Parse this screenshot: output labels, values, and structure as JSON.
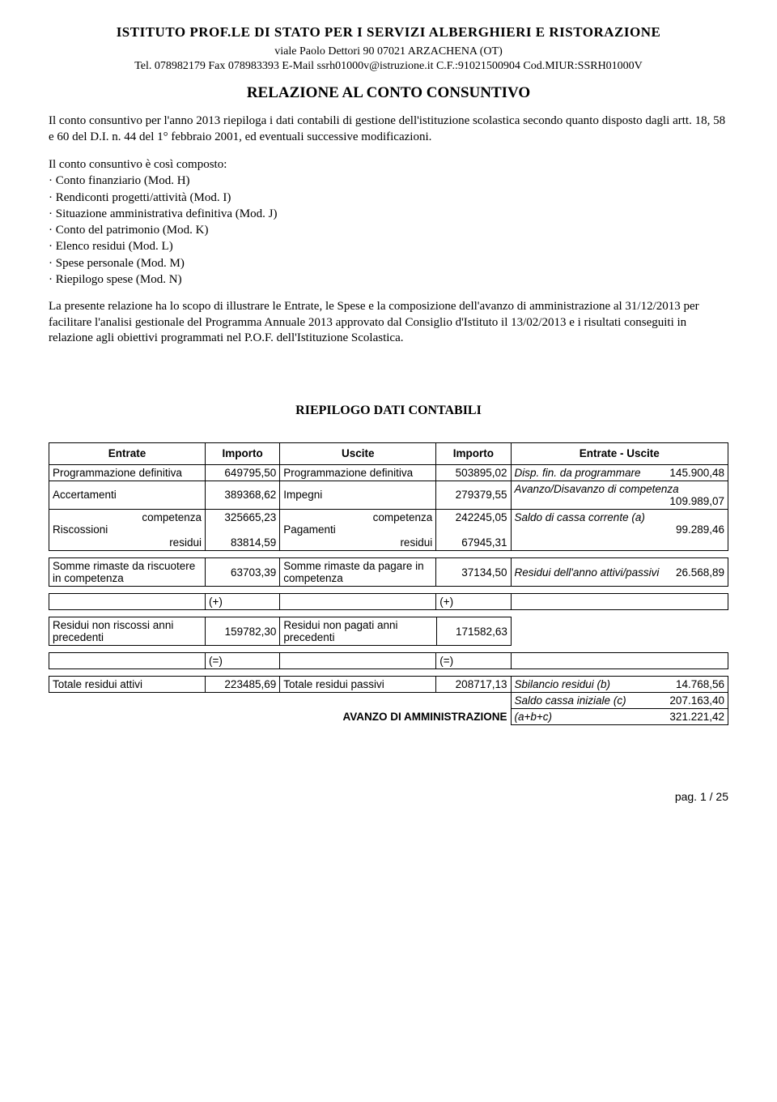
{
  "header": {
    "institution": "ISTITUTO PROF.LE DI STATO PER I SERVIZI ALBERGHIERI E RISTORAZIONE",
    "address_line1": "viale Paolo Dettori 90  07021 ARZACHENA (OT)",
    "address_line2": "Tel. 078982179  Fax 078983393  E-Mail ssrh01000v@istruzione.it  C.F.:91021500904  Cod.MIUR:SSRH01000V",
    "doc_title": "RELAZIONE AL CONTO CONSUNTIVO"
  },
  "intro_para": "Il conto consuntivo per l'anno 2013 riepiloga i dati contabili di gestione dell'istituzione scolastica secondo quanto disposto dagli artt. 18, 58 e 60 del D.I. n. 44 del 1° febbraio 2001, ed eventuali successive modificazioni.",
  "complist": {
    "intro": "Il conto consuntivo è così composto:",
    "items": [
      "· Conto finanziario (Mod. H)",
      "· Rendiconti progetti/attività (Mod. I)",
      "· Situazione amministrativa definitiva (Mod. J)",
      "· Conto del patrimonio (Mod. K)",
      "· Elenco residui (Mod. L)",
      "· Spese personale (Mod. M)",
      "· Riepilogo spese (Mod. N)"
    ]
  },
  "scope_para": "La presente relazione ha lo scopo di illustrare le Entrate, le Spese e la composizione dell'avanzo di amministrazione al 31/12/2013 per facilitare l'analisi gestionale del Programma Annuale 2013 approvato dal Consiglio d'Istituto il 13/02/2013 e i risultati conseguiti in relazione agli obiettivi programmati nel P.O.F. dell'Istituzione Scolastica.",
  "section_title": "RIEPILOGO DATI CONTABILI",
  "table_headers": {
    "entrate": "Entrate",
    "importo1": "Importo",
    "uscite": "Uscite",
    "importo2": "Importo",
    "diff": "Entrate - Uscite"
  },
  "rows": {
    "r1": {
      "a": "Programmazione definitiva",
      "av": "649795,50",
      "b": "Programmazione definitiva",
      "bv": "503895,02",
      "c_top": "Disp. fin. da programmare",
      "c_val": "145.900,48"
    },
    "r2": {
      "a": "Accertamenti",
      "av": "389368,62",
      "b": "Impegni",
      "bv": "279379,55",
      "c_top": "Avanzo/Disavanzo di competenza",
      "c_val": "109.989,07"
    },
    "r3": {
      "a_main": "Riscossioni",
      "a_sub1": "competenza",
      "av1": "325665,23",
      "a_sub2": "residui",
      "av2": "83814,59",
      "b_main": "Pagamenti",
      "b_sub1": "competenza",
      "bv1": "242245,05",
      "b_sub2": "residui",
      "bv2": "67945,31",
      "c_top": "Saldo di cassa corrente (a)",
      "c_val": "99.289,46"
    },
    "r4": {
      "a": "Somme rimaste da riscuotere in competenza",
      "av": "63703,39",
      "b": "Somme rimaste da pagare in competenza",
      "bv": "37134,50",
      "c_top": "Residui dell'anno attivi/passivi",
      "c_val": "26.568,89"
    },
    "sym_plus": "(+)",
    "r5": {
      "a": "Residui non riscossi anni precedenti",
      "av": "159782,30",
      "b": "Residui non pagati anni precedenti",
      "bv": "171582,63"
    },
    "sym_eq": "(=)",
    "r6": {
      "a": "Totale residui attivi",
      "av": "223485,69",
      "b": "Totale residui passivi",
      "bv": "208717,13",
      "c_top": "Sbilancio residui (b)",
      "c_val": "14.768,56"
    },
    "r7": {
      "c_top": "Saldo cassa iniziale (c)",
      "c_val": "207.163,40"
    },
    "r8": {
      "label": "AVANZO DI AMMINISTRAZIONE",
      "c_top": "(a+b+c)",
      "c_val": "321.221,42"
    }
  },
  "footer": "pag. 1 / 25"
}
